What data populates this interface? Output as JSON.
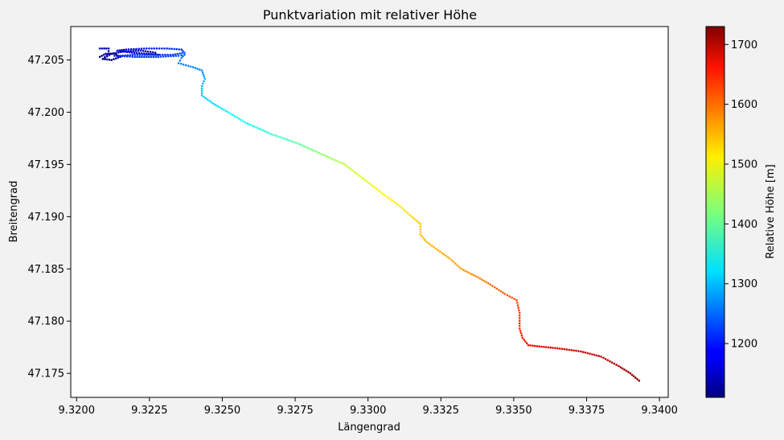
{
  "chart_data": {
    "type": "scatter",
    "title": "Punktvariation mit relativer Höhe",
    "xlabel": "Längengrad",
    "ylabel": "Breitengrad",
    "xlim": [
      9.3198,
      9.3403
    ],
    "ylim": [
      47.1727,
      47.2082
    ],
    "xticks": [
      "9.3200",
      "9.3225",
      "9.3250",
      "9.3275",
      "9.3300",
      "9.3325",
      "9.3350",
      "9.3375",
      "9.3400"
    ],
    "yticks": [
      "47.175",
      "47.180",
      "47.185",
      "47.190",
      "47.195",
      "47.200",
      "47.205"
    ],
    "grid": false,
    "colorbar": {
      "label": "Relative Höhe [m]",
      "colormap": "jet",
      "range": [
        1110,
        1730
      ],
      "ticks": [
        "1200",
        "1300",
        "1400",
        "1500",
        "1600",
        "1700"
      ]
    },
    "series": [
      {
        "lon": [
          9.3208,
          9.3211,
          9.3211,
          9.3209,
          9.3208,
          9.321,
          9.3213,
          9.3215,
          9.3212,
          9.3209,
          9.3212,
          9.3216,
          9.3222,
          9.3227,
          9.3228,
          9.3224,
          9.3219,
          9.3214,
          9.3217,
          9.3224,
          9.3231,
          9.3236,
          9.3237,
          9.3233,
          9.3226,
          9.322,
          9.3215,
          9.3213,
          9.322,
          9.3228,
          9.3235,
          9.3237,
          9.3236,
          9.3235,
          9.324,
          9.3243,
          9.3244,
          9.3243,
          9.3243,
          9.3247,
          9.3252,
          9.3258,
          9.3266,
          9.3276,
          9.3284,
          9.3292,
          9.3299,
          9.3306,
          9.3311,
          9.3315,
          9.3318,
          9.3318,
          9.332,
          9.3324,
          9.3328,
          9.3332,
          9.3337,
          9.3342,
          9.3347,
          9.3351,
          9.3352,
          9.3352,
          9.3353,
          9.3355,
          9.3358,
          9.3365,
          9.3373,
          9.338,
          9.3386,
          9.339,
          9.3393
        ],
        "lat": [
          47.2061,
          47.2061,
          47.2056,
          47.2051,
          47.2053,
          47.2056,
          47.2056,
          47.2053,
          47.205,
          47.2051,
          47.2056,
          47.2058,
          47.2059,
          47.2057,
          47.2055,
          47.2056,
          47.2057,
          47.2059,
          47.206,
          47.2061,
          47.2061,
          47.206,
          47.2057,
          47.2055,
          47.2055,
          47.2055,
          47.2054,
          47.2054,
          47.2053,
          47.2053,
          47.2054,
          47.2055,
          47.2052,
          47.2047,
          47.2043,
          47.204,
          47.2032,
          47.2025,
          47.2016,
          47.2008,
          47.2,
          47.199,
          47.198,
          47.197,
          47.196,
          47.195,
          47.1935,
          47.192,
          47.191,
          47.19,
          47.1893,
          47.1883,
          47.1876,
          47.1868,
          47.186,
          47.185,
          47.1843,
          47.1835,
          47.1826,
          47.182,
          47.1808,
          47.1793,
          47.1784,
          47.1777,
          47.1776,
          47.1774,
          47.1771,
          47.1766,
          47.1757,
          47.175,
          47.1743
        ],
        "alt": [
          1150,
          1140,
          1130,
          1120,
          1115,
          1120,
          1125,
          1120,
          1115,
          1110,
          1130,
          1140,
          1130,
          1120,
          1115,
          1140,
          1160,
          1170,
          1180,
          1200,
          1210,
          1220,
          1230,
          1225,
          1220,
          1215,
          1210,
          1205,
          1215,
          1225,
          1235,
          1245,
          1260,
          1265,
          1270,
          1280,
          1290,
          1300,
          1310,
          1320,
          1335,
          1350,
          1370,
          1400,
          1430,
          1460,
          1480,
          1500,
          1515,
          1520,
          1530,
          1535,
          1540,
          1545,
          1550,
          1560,
          1570,
          1585,
          1600,
          1610,
          1620,
          1630,
          1640,
          1650,
          1660,
          1670,
          1680,
          1690,
          1700,
          1715,
          1730
        ]
      }
    ]
  }
}
